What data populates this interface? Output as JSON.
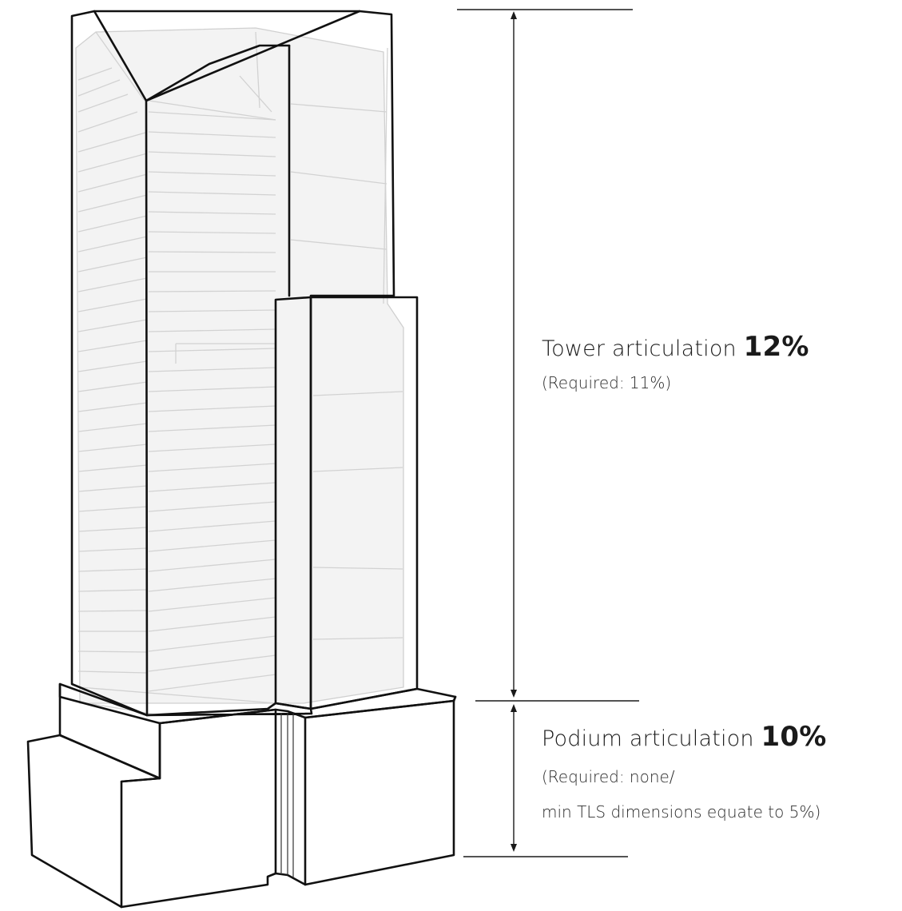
{
  "tower": {
    "label": "Tower articulation",
    "value": "12%",
    "required": "(Required: 11%)"
  },
  "podium": {
    "label": "Podium articulation",
    "value": "10%",
    "required_line1": "(Required: none/",
    "required_line2": "min TLS dimensions equate to 5%)"
  },
  "colors": {
    "outline": "#111111",
    "ghost_fill": "#f3f3f3",
    "ghost_stroke": "#cfcfcf",
    "text": "#1a1a1a"
  }
}
